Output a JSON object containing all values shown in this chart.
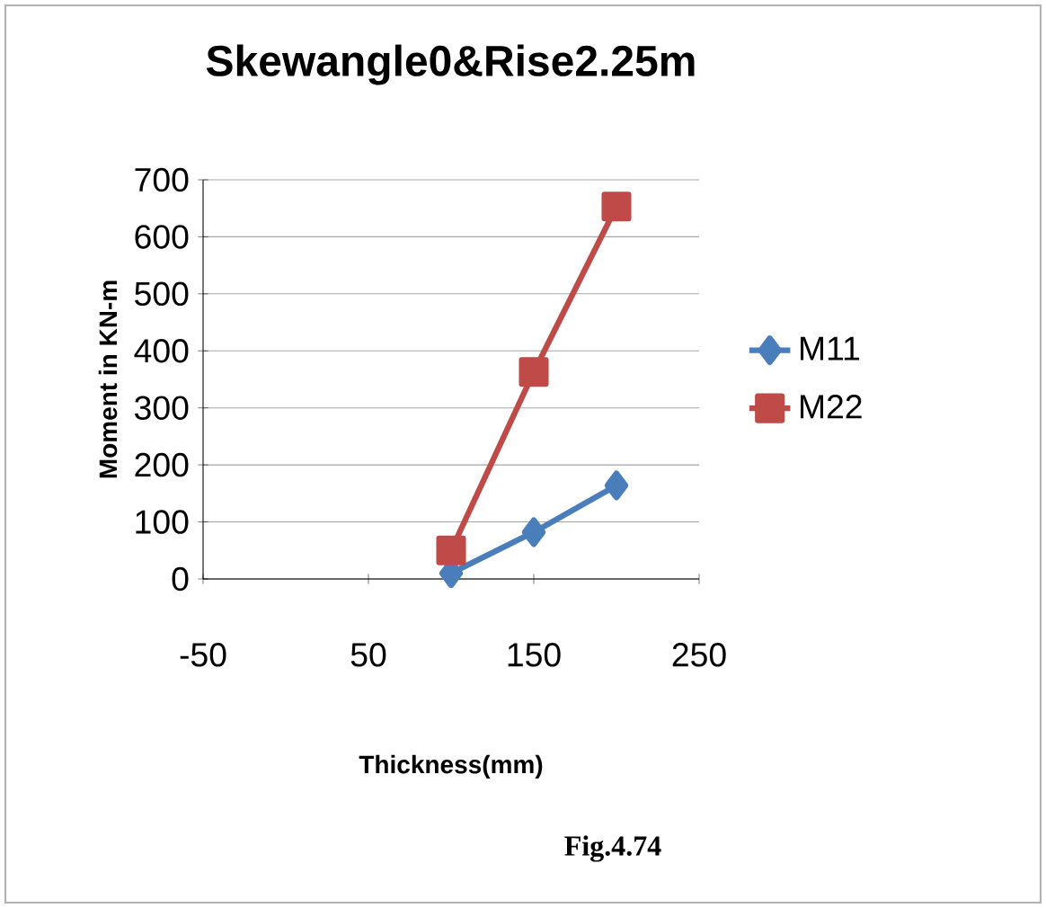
{
  "chart_data": {
    "type": "line",
    "title": "Skewangle0&Rise2.25m",
    "xlabel": "Thickness(mm)",
    "ylabel": "Moment in KN-m",
    "x": [
      100,
      150,
      200
    ],
    "series": [
      {
        "name": "M11",
        "color": "#4a7ebb",
        "marker": "diamond",
        "values": [
          10,
          82,
          164
        ]
      },
      {
        "name": "M22",
        "color": "#be4b48",
        "marker": "square",
        "values": [
          50,
          363,
          653
        ]
      }
    ],
    "xlim": [
      -50,
      250
    ],
    "xticks": [
      -50,
      50,
      150,
      250
    ],
    "ylim": [
      0,
      700
    ],
    "yticks": [
      0,
      100,
      200,
      300,
      400,
      500,
      600,
      700
    ],
    "grid": "y",
    "legend": "right",
    "annotations": [
      "Fig.4.74"
    ]
  }
}
